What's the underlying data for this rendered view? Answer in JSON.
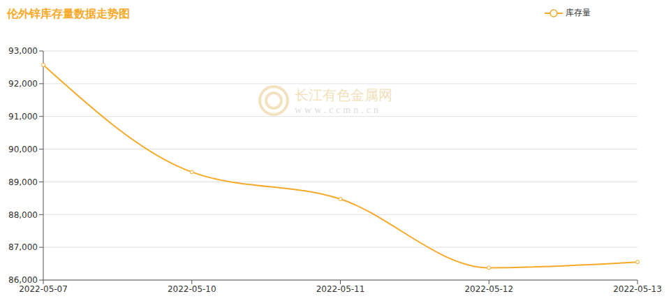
{
  "chart_data": {
    "type": "line",
    "title": "伦外锌库存量数据走势图",
    "annotations": [
      "长江有色金属网",
      "www.ccmn.cn"
    ],
    "x": [
      "2022-05-07",
      "2022-05-10",
      "2022-05-11",
      "2022-05-12",
      "2022-05-13"
    ],
    "series": [
      {
        "name": "库存量",
        "color": "#f7a928",
        "values": [
          92575,
          89300,
          88475,
          86375,
          86550
        ],
        "marker": "circle",
        "line_style": "solid"
      }
    ],
    "ylim": [
      86000,
      93000
    ],
    "yticks": [
      {
        "value": 86000,
        "label": "86,000"
      },
      {
        "value": 87000,
        "label": "87,000"
      },
      {
        "value": 88000,
        "label": "88,000"
      },
      {
        "value": 89000,
        "label": "89,000"
      },
      {
        "value": 90000,
        "label": "90,000"
      },
      {
        "value": 91000,
        "label": "91,000"
      },
      {
        "value": 92000,
        "label": "92,000"
      },
      {
        "value": 93000,
        "label": "93,000"
      }
    ],
    "grid": true,
    "legend": "upper right"
  }
}
